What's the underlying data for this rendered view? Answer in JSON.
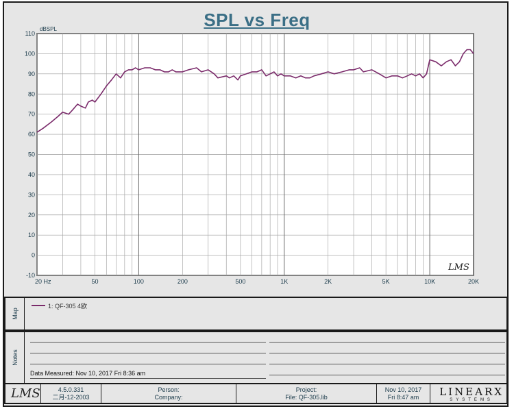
{
  "title": "SPL vs Freq",
  "chart_data": {
    "type": "line",
    "title": "SPL vs Freq",
    "ylabel": "dBSPL",
    "xlabel": "",
    "xscale": "log",
    "xlim": [
      20,
      20000
    ],
    "ylim": [
      -10,
      110
    ],
    "grid": true,
    "yticks": [
      110,
      100,
      90,
      80,
      70,
      60,
      50,
      40,
      30,
      20,
      10,
      0,
      -10
    ],
    "xticks": [
      {
        "value": 20,
        "label": "20  Hz"
      },
      {
        "value": 50,
        "label": "50"
      },
      {
        "value": 100,
        "label": "100"
      },
      {
        "value": 200,
        "label": "200"
      },
      {
        "value": 500,
        "label": "500"
      },
      {
        "value": 1000,
        "label": "1K"
      },
      {
        "value": 2000,
        "label": "2K"
      },
      {
        "value": 5000,
        "label": "5K"
      },
      {
        "value": 10000,
        "label": "10K"
      },
      {
        "value": 20000,
        "label": "20K"
      }
    ],
    "series": [
      {
        "name": "1: QF-305  4欧",
        "color": "#7a2a6a",
        "x": [
          20,
          22,
          25,
          28,
          30,
          33,
          35,
          38,
          40,
          43,
          45,
          48,
          50,
          55,
          60,
          65,
          70,
          75,
          80,
          85,
          90,
          95,
          100,
          110,
          120,
          130,
          140,
          150,
          160,
          170,
          180,
          200,
          220,
          250,
          270,
          300,
          330,
          350,
          400,
          420,
          450,
          480,
          500,
          550,
          600,
          650,
          700,
          750,
          800,
          850,
          900,
          950,
          1000,
          1100,
          1200,
          1300,
          1400,
          1500,
          1600,
          1800,
          2000,
          2200,
          2500,
          2800,
          3000,
          3300,
          3500,
          4000,
          4500,
          5000,
          5500,
          6000,
          6500,
          7000,
          7500,
          8000,
          8500,
          9000,
          9500,
          10000,
          11000,
          12000,
          13000,
          14000,
          15000,
          16000,
          17000,
          18000,
          19000,
          20000
        ],
        "values": [
          61,
          63,
          66,
          69,
          71,
          70,
          72,
          75,
          74,
          73,
          76,
          77,
          76,
          80,
          84,
          87,
          90,
          88,
          91,
          92,
          92,
          93,
          92,
          93,
          93,
          92,
          92,
          91,
          91,
          92,
          91,
          91,
          92,
          93,
          91,
          92,
          90,
          88,
          89,
          88,
          89,
          87,
          89,
          90,
          91,
          91,
          92,
          89,
          90,
          91,
          89,
          90,
          89,
          89,
          88,
          89,
          88,
          88,
          89,
          90,
          91,
          90,
          91,
          92,
          92,
          93,
          91,
          92,
          90,
          88,
          89,
          89,
          88,
          89,
          90,
          89,
          90,
          88,
          90,
          97,
          96,
          94,
          96,
          97,
          94,
          96,
          100,
          102,
          102,
          100
        ]
      }
    ]
  },
  "chart_logo": "LMS",
  "map": {
    "label": "Map",
    "legend_text": "1: QF-305  4欧"
  },
  "notes": {
    "label": "Notes",
    "data_measured": "Data Measured: Nov 10, 2017  Fri  8:36 am"
  },
  "footer": {
    "logo": "LMS",
    "version": "4.5.0.331",
    "version_date": "二月-12-2003",
    "person_label": "Person:",
    "company_label": "Company:",
    "project_label": "Project:",
    "file_label": "File: QF-305.lib",
    "date": "Nov 10, 2017",
    "time": "Fri  8:47 am",
    "brand": "LINEARX",
    "brand_sub": "SYSTEMS"
  }
}
